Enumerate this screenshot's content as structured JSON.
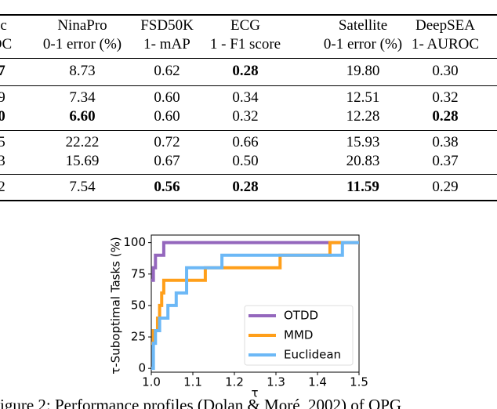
{
  "table": {
    "header": [
      [
        "ic",
        "NinaPro",
        "FSD50K",
        "ECG",
        "Satellite",
        "DeepSEA"
      ],
      [
        "OC",
        "0-1 error (%)",
        "1- mAP",
        "1 - F1 score",
        "0-1 error (%)",
        "1- AUROC"
      ]
    ],
    "rows": [
      {
        "cells": [
          "7",
          "8.73",
          "0.62",
          "0.28",
          "19.80",
          "0.30"
        ],
        "bold": [
          0,
          3
        ]
      },
      {
        "cells": [
          "9",
          "7.34",
          "0.60",
          "0.34",
          "12.51",
          "0.32"
        ],
        "bold": []
      },
      {
        "cells": [
          "0",
          "6.60",
          "0.60",
          "0.32",
          "12.28",
          "0.28"
        ],
        "bold": [
          0,
          1,
          5
        ]
      },
      {
        "cells": [
          "5",
          "22.22",
          "0.72",
          "0.66",
          "15.93",
          "0.38"
        ],
        "bold": []
      },
      {
        "cells": [
          "3",
          "15.69",
          "0.67",
          "0.50",
          "20.83",
          "0.37"
        ],
        "bold": []
      },
      {
        "cells": [
          "2",
          "7.54",
          "0.56",
          "0.28",
          "11.59",
          "0.29"
        ],
        "bold": [
          2,
          3,
          4
        ]
      }
    ]
  },
  "chart_data": {
    "type": "step",
    "ylabel": "τ-Suboptimal Tasks (%)",
    "xlabel": "τ",
    "xlim": [
      1.0,
      1.5
    ],
    "ylim": [
      -3,
      106
    ],
    "xticks": [
      {
        "value": 1.0,
        "label": "1.0"
      },
      1.1,
      1.2,
      1.3,
      1.4,
      1.5
    ],
    "yticks": [
      0,
      25,
      50,
      75,
      100
    ],
    "legend": "lower right",
    "series": [
      {
        "name": "OTDD",
        "color": "#9467bd",
        "x": [
          1.0,
          1.005,
          1.01,
          1.03,
          1.5
        ],
        "values": [
          70,
          80,
          90,
          100,
          100
        ]
      },
      {
        "name": "MMD",
        "color": "#ff9f1a",
        "x": [
          1.0,
          1.005,
          1.015,
          1.02,
          1.025,
          1.03,
          1.13,
          1.31,
          1.43,
          1.5
        ],
        "values": [
          20,
          30,
          40,
          50,
          60,
          70,
          80,
          90,
          100,
          100
        ]
      },
      {
        "name": "Euclidean",
        "color": "#6cb8f6",
        "x": [
          1.0,
          1.005,
          1.01,
          1.02,
          1.04,
          1.06,
          1.085,
          1.17,
          1.46,
          1.5
        ],
        "values": [
          0,
          20,
          30,
          40,
          50,
          60,
          80,
          90,
          100,
          100
        ]
      }
    ]
  },
  "caption": "igure 2: Performance profiles (Dolan & Moré, 2002) of OPG"
}
